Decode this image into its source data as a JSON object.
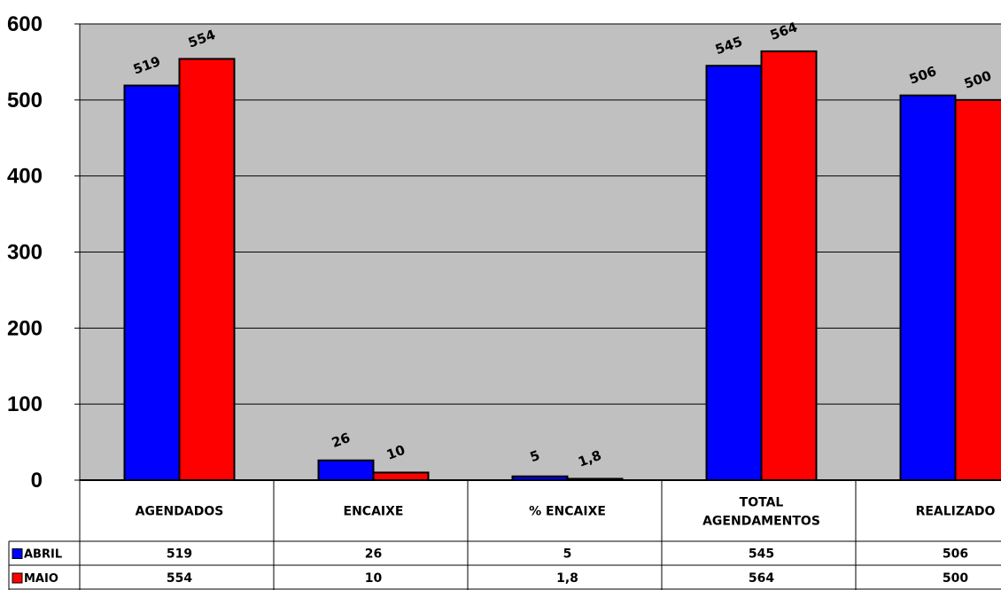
{
  "chart_data": {
    "type": "bar",
    "categories": [
      "AGENDADOS",
      "ENCAIXE",
      "% ENCAIXE",
      "TOTAL AGENDAMENTOS",
      "REALIZADO"
    ],
    "category_lines": [
      [
        "AGENDADOS"
      ],
      [
        "ENCAIXE"
      ],
      [
        "% ENCAIXE"
      ],
      [
        "TOTAL",
        "AGENDAMENTOS"
      ],
      [
        "REALIZADO"
      ]
    ],
    "series": [
      {
        "name": "ABRIL",
        "color": "#0000ff",
        "values": [
          519,
          26,
          5,
          545,
          506
        ],
        "labels": [
          "519",
          "26",
          "5",
          "545",
          "506"
        ]
      },
      {
        "name": "MAIO",
        "color": "#ff0000",
        "values": [
          554,
          10,
          1.8,
          564,
          500
        ],
        "labels": [
          "554",
          "10",
          "1,8",
          "564",
          "500"
        ]
      }
    ],
    "ylim": [
      0,
      600
    ],
    "yticks": [
      "0",
      "100",
      "200",
      "300",
      "400",
      "500",
      "600"
    ],
    "grid": true,
    "plot_background": "#c0c0c0",
    "legend_placement": "data-table-left",
    "data_table": true
  }
}
